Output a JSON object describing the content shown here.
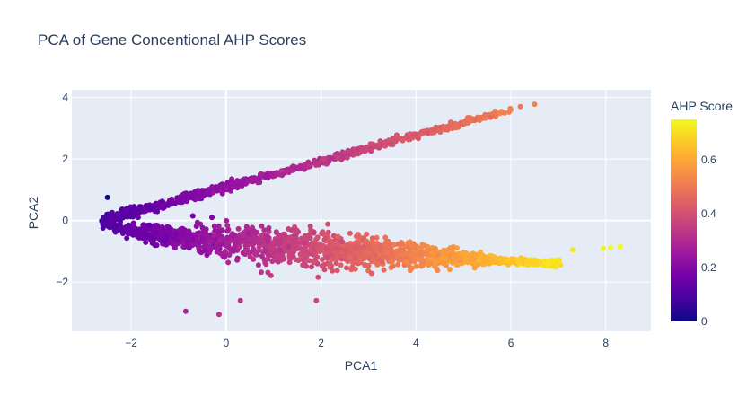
{
  "chart_data": {
    "type": "scatter",
    "title": "PCA of Gene Concentional AHP Scores",
    "xlabel": "PCA1",
    "ylabel": "PCA2",
    "xlim": [
      -3.25,
      8.95
    ],
    "ylim": [
      -3.6,
      4.25
    ],
    "x_ticks": [
      -2,
      0,
      2,
      4,
      6,
      8
    ],
    "y_ticks": [
      -2,
      0,
      2,
      4
    ],
    "x_tick_labels": [
      "−2",
      "0",
      "2",
      "4",
      "6",
      "8"
    ],
    "y_tick_labels": [
      "−2",
      "0",
      "2",
      "4"
    ],
    "grid": true,
    "plot_background": "#e5ecf6",
    "colorscale": "plasma",
    "colorbar": {
      "title": "AHP Score",
      "range": [
        0,
        0.75
      ],
      "ticks": [
        0,
        0.2,
        0.4,
        0.6
      ],
      "tick_labels": [
        "0",
        "0.2",
        "0.4",
        "0.6"
      ]
    },
    "series": [
      {
        "points_note_free": true,
        "upper_branch": {
          "x_start": -2.6,
          "y_start": 0.0,
          "x_end": 6.0,
          "y_end": 3.6,
          "score_start": 0.1,
          "score_end": 0.52
        },
        "lower_branch": {
          "x_start": -2.6,
          "y_start": 0.0,
          "x_end": 7.0,
          "y_end": -1.2,
          "score_start": 0.1,
          "score_end": 0.72
        }
      }
    ],
    "outliers": [
      {
        "x": -2.5,
        "y": 0.75,
        "score": 0.0
      },
      {
        "x": 6.2,
        "y": 3.7,
        "score": 0.5
      },
      {
        "x": 6.5,
        "y": 3.78,
        "score": 0.52
      },
      {
        "x": -0.85,
        "y": -2.95,
        "score": 0.28
      },
      {
        "x": -0.15,
        "y": -3.05,
        "score": 0.32
      },
      {
        "x": 0.3,
        "y": -2.6,
        "score": 0.33
      },
      {
        "x": 1.9,
        "y": -2.6,
        "score": 0.38
      },
      {
        "x": 7.3,
        "y": -0.95,
        "score": 0.72
      },
      {
        "x": 7.95,
        "y": -0.9,
        "score": 0.74
      },
      {
        "x": 8.1,
        "y": -0.88,
        "score": 0.75
      },
      {
        "x": 8.3,
        "y": -0.85,
        "score": 0.75
      },
      {
        "x": -0.3,
        "y": 0.1,
        "score": 0.18
      },
      {
        "x": -0.7,
        "y": 0.15,
        "score": 0.16
      }
    ]
  }
}
